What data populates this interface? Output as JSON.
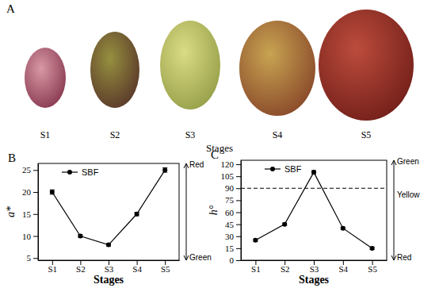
{
  "photo_panel": {
    "label": "A",
    "stages": [
      "S1",
      "S2",
      "S3",
      "S4",
      "S5"
    ],
    "xlabel": "Stages"
  },
  "chart_data": [
    {
      "type": "line",
      "title": "B",
      "xlabel": "Stages",
      "ylabel": "a*",
      "categories": [
        "S1",
        "S2",
        "S3",
        "S4",
        "S5"
      ],
      "series": [
        {
          "name": "SBF",
          "color": "#000000",
          "marker": "circle",
          "line_style": "solid",
          "values": [
            20,
            10,
            8,
            15,
            25
          ],
          "errors": [
            0.5,
            0.3,
            0.3,
            0.4,
            0.5
          ]
        }
      ],
      "ylim": [
        4.5,
        26.5
      ],
      "yticks": [
        5,
        10,
        15,
        20,
        25
      ],
      "legend": "upper left",
      "annotations": [
        "Red",
        "Green"
      ]
    },
    {
      "type": "line",
      "title": "C",
      "xlabel": "Stages",
      "ylabel": "h°",
      "categories": [
        "S1",
        "S2",
        "S3",
        "S4",
        "S5"
      ],
      "series": [
        {
          "name": "SBF",
          "color": "#000000",
          "marker": "circle",
          "line_style": "solid",
          "values": [
            25,
            45,
            110,
            40,
            15
          ],
          "errors": [
            1.5,
            1.5,
            2,
            1.5,
            1.5
          ]
        }
      ],
      "ylim": [
        0,
        125
      ],
      "yticks": [
        0,
        15,
        30,
        45,
        60,
        75,
        90,
        105,
        120
      ],
      "legend": "upper left",
      "reference_line": 90,
      "annotations": [
        "Green",
        "Yellow",
        "Red"
      ]
    }
  ]
}
